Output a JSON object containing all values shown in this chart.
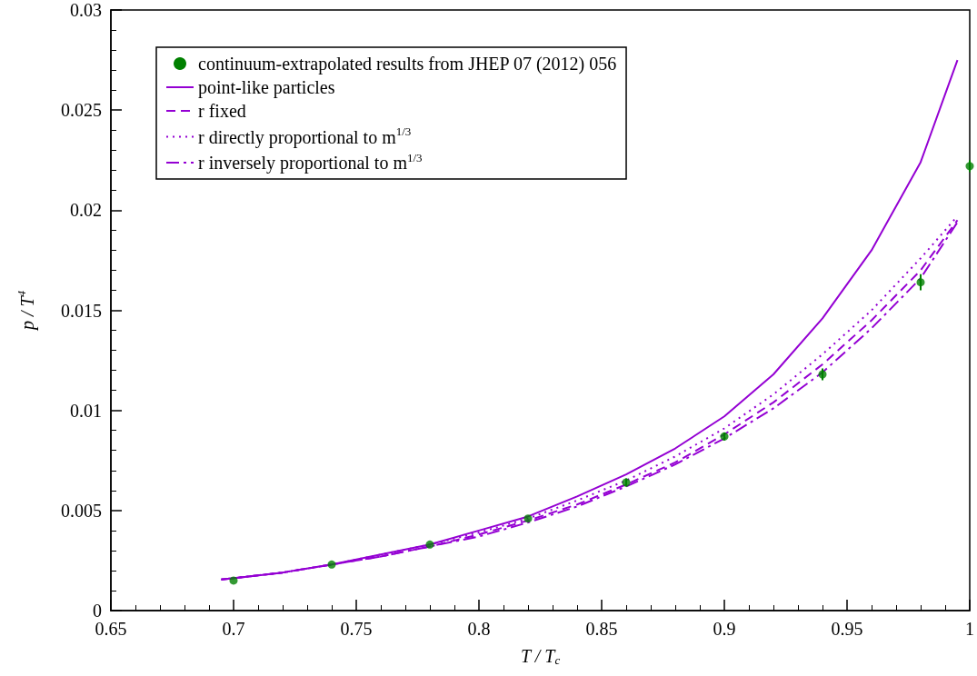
{
  "chart_data": {
    "type": "line",
    "xlabel": "T / T$_{c}$",
    "ylabel": "p / T$^{4}$",
    "xlim": [
      0.65,
      1
    ],
    "xticks": [
      0.65,
      0.7,
      0.75,
      0.8,
      0.85,
      0.9,
      0.95,
      1
    ],
    "ylim": [
      0,
      0.03
    ],
    "yticks": [
      0,
      0.005,
      0.01,
      0.015,
      0.02,
      0.025,
      0.03
    ],
    "grid": false,
    "legend": "top left",
    "series": [
      {
        "name": "continuum-extrapolated results from JHEP 07 (2012) 056",
        "type": "scatter",
        "marker": "circle",
        "color": "#008000",
        "x": [
          0.7,
          0.74,
          0.78,
          0.82,
          0.86,
          0.9,
          0.94,
          0.98,
          1.0
        ],
        "values": [
          0.0015,
          0.0023,
          0.0033,
          0.0046,
          0.0064,
          0.0087,
          0.0118,
          0.0164,
          0.0222
        ],
        "errors": [
          null,
          null,
          null,
          null,
          0.0002,
          0.0002,
          0.0003,
          0.0004,
          0.0003
        ]
      },
      {
        "name": "point-like particles",
        "line_style": "solid",
        "color": "#9400d3",
        "x": [
          0.695,
          0.72,
          0.74,
          0.76,
          0.78,
          0.8,
          0.82,
          0.84,
          0.86,
          0.88,
          0.9,
          0.92,
          0.94,
          0.96,
          0.98,
          0.995
        ],
        "values": [
          0.00155,
          0.0019,
          0.0023,
          0.0028,
          0.0033,
          0.004,
          0.0047,
          0.0057,
          0.0068,
          0.0081,
          0.0097,
          0.0118,
          0.0146,
          0.018,
          0.0224,
          0.0275
        ]
      },
      {
        "name": "r fixed",
        "line_style": "dashed",
        "color": "#9400d3",
        "x": [
          0.695,
          0.72,
          0.74,
          0.76,
          0.78,
          0.8,
          0.82,
          0.84,
          0.86,
          0.88,
          0.9,
          0.92,
          0.94,
          0.96,
          0.98,
          0.995
        ],
        "values": [
          0.00155,
          0.0019,
          0.0023,
          0.0027,
          0.0032,
          0.0038,
          0.0045,
          0.0053,
          0.0063,
          0.0074,
          0.0088,
          0.0104,
          0.0123,
          0.0145,
          0.017,
          0.0195
        ]
      },
      {
        "name": "r directly proportional to m$^{1/3}$",
        "line_style": "dotted",
        "color": "#9400d3",
        "x": [
          0.695,
          0.72,
          0.74,
          0.76,
          0.78,
          0.8,
          0.82,
          0.84,
          0.86,
          0.88,
          0.9,
          0.92,
          0.94,
          0.96,
          0.98,
          0.995
        ],
        "values": [
          0.00155,
          0.0019,
          0.0023,
          0.0028,
          0.0033,
          0.0039,
          0.0046,
          0.0055,
          0.0065,
          0.0077,
          0.0091,
          0.0108,
          0.0128,
          0.015,
          0.0176,
          0.0197
        ]
      },
      {
        "name": "r inversely proportional to m$^{1/3}$",
        "line_style": "dashdot",
        "color": "#9400d3",
        "x": [
          0.695,
          0.72,
          0.74,
          0.76,
          0.78,
          0.8,
          0.82,
          0.84,
          0.86,
          0.88,
          0.9,
          0.92,
          0.94,
          0.96,
          0.98,
          0.995
        ],
        "values": [
          0.00155,
          0.0019,
          0.0023,
          0.0027,
          0.0032,
          0.0037,
          0.0044,
          0.0052,
          0.0062,
          0.0073,
          0.0086,
          0.0101,
          0.0119,
          0.0141,
          0.0166,
          0.0194
        ]
      }
    ]
  }
}
